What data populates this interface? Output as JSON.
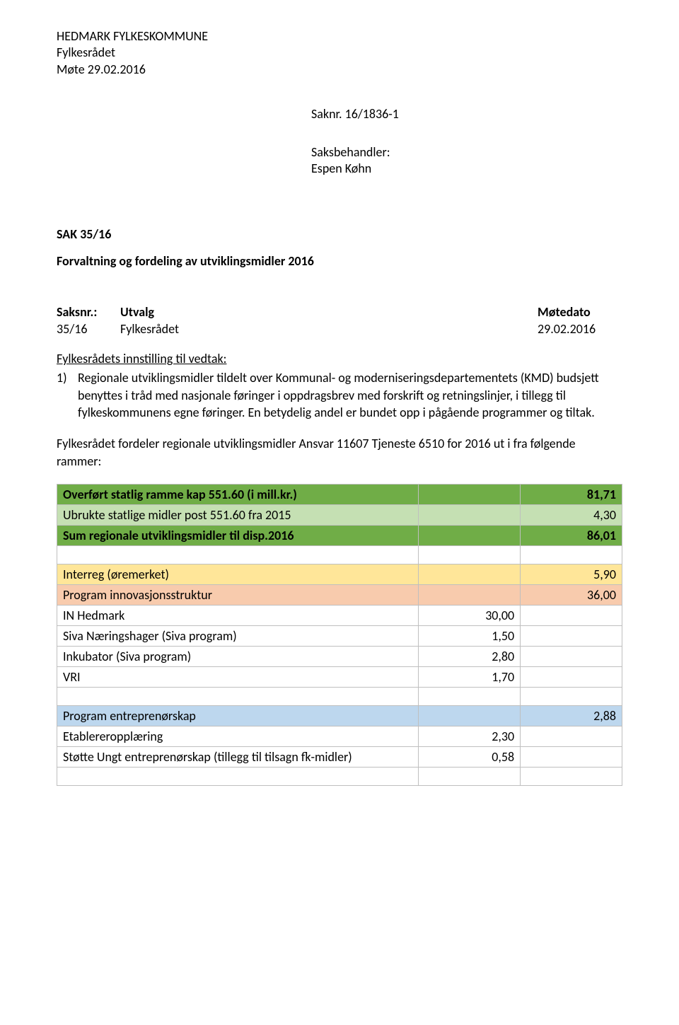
{
  "header": {
    "org": "HEDMARK FYLKESKOMMUNE",
    "unit": "Fylkesrådet",
    "meeting": "Møte 29.02.2016"
  },
  "saknr": {
    "label": "Saknr. 16/1836-1"
  },
  "saksbehandler": {
    "label": "Saksbehandler:",
    "name": "Espen Køhn"
  },
  "sak": {
    "code": "SAK  35/16",
    "title": "Forvaltning og fordeling av utviklingsmidler 2016"
  },
  "meta_header": {
    "c1": "Saksnr.:",
    "c2": "Utvalg",
    "c3": "Møtedato"
  },
  "meta_row": {
    "c1": "35/16",
    "c2": "Fylkesrådet",
    "c3": "29.02.2016"
  },
  "innstilling": {
    "heading": "Fylkesrådets innstilling til vedtak:",
    "item1_num": "1)",
    "item1_text": "Regionale utviklingsmidler tildelt over Kommunal- og moderniseringsdepartementets (KMD) budsjett benyttes i tråd med nasjonale føringer i oppdragsbrev med forskrift og retningslinjer, i tillegg til fylkeskommunens egne føringer. En betydelig andel er bundet opp i pågående programmer og tiltak."
  },
  "fordeler_para": "Fylkesrådet fordeler regionale utviklingsmidler Ansvar 11607 Tjeneste 6510 for 2016 ut i fra følgende rammer:",
  "table": {
    "colors": {
      "green_dark": "#70ad47",
      "green_light": "#c5e0b3",
      "yellow_light": "#ffe699",
      "orange_light": "#f8cbad",
      "blue_light": "#bdd7ee",
      "border": "#bfbfbf",
      "white": "#ffffff"
    },
    "rows": [
      {
        "label": "Overført statlig ramme kap 551.60 (i mill.kr.)",
        "val": "",
        "sum": "81,71",
        "bg": "green_dark",
        "bold": true
      },
      {
        "label": "Ubrukte statlige midler post 551.60 fra 2015",
        "val": "",
        "sum": "4,30",
        "bg": "green_light",
        "bold": false
      },
      {
        "label": "Sum regionale utviklingsmidler til disp.2016",
        "val": "",
        "sum": "86,01",
        "bg": "green_dark",
        "bold": true
      },
      {
        "label": "",
        "val": "",
        "sum": "",
        "bg": "white",
        "bold": false
      },
      {
        "label": "Interreg (øremerket)",
        "val": "",
        "sum": "5,90",
        "bg": "yellow_light",
        "bold": false
      },
      {
        "label": "Program innovasjonsstruktur",
        "val": "",
        "sum": "36,00",
        "bg": "orange_light",
        "bold": false
      },
      {
        "label": "IN Hedmark",
        "val": "30,00",
        "sum": "",
        "bg": "white",
        "bold": false
      },
      {
        "label": "Siva Næringshager (Siva program)",
        "val": "1,50",
        "sum": "",
        "bg": "white",
        "bold": false
      },
      {
        "label": "Inkubator (Siva program)",
        "val": "2,80",
        "sum": "",
        "bg": "white",
        "bold": false
      },
      {
        "label": "VRI",
        "val": "1,70",
        "sum": "",
        "bg": "white",
        "bold": false
      },
      {
        "label": "",
        "val": "",
        "sum": "",
        "bg": "white",
        "bold": false
      },
      {
        "label": "Program entreprenørskap",
        "val": "",
        "sum": "2,88",
        "bg": "blue_light",
        "bold": false
      },
      {
        "label": "Etablereropplæring",
        "val": "2,30",
        "sum": "",
        "bg": "white",
        "bold": false
      },
      {
        "label": "Støtte Ungt entreprenørskap (tillegg til tilsagn fk-midler)",
        "val": "0,58",
        "sum": "",
        "bg": "white",
        "bold": false
      },
      {
        "label": "",
        "val": "",
        "sum": "",
        "bg": "white",
        "bold": false
      }
    ]
  }
}
